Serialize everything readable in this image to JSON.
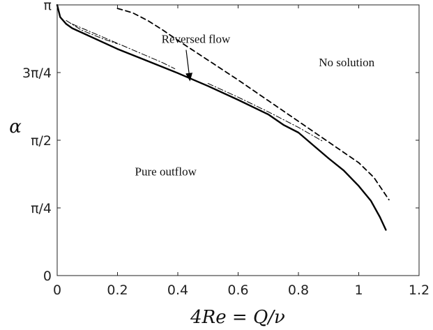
{
  "chart_data": {
    "type": "line",
    "xlabel": "4Re = Q/ν",
    "ylabel": "α",
    "xlim": [
      0,
      1.2
    ],
    "ylim": [
      0,
      3.14159
    ],
    "xticks": [
      0,
      0.2,
      0.4,
      0.6,
      0.8,
      1,
      1.2
    ],
    "xtick_labels": [
      "0",
      "0.2",
      "0.4",
      "0.6",
      "0.8",
      "1",
      "1.2"
    ],
    "yticks": [
      0,
      0.785398,
      1.570796,
      2.356194,
      3.14159
    ],
    "ytick_labels": [
      "0",
      "π/4",
      "π/2",
      "3π/4",
      "π"
    ],
    "grid": false,
    "legend": "none",
    "annotations": [
      {
        "text": "Reversed flow",
        "x": 0.46,
        "y": 2.7,
        "arrow_to": [
          0.44,
          2.27
        ]
      },
      {
        "text": "No solution",
        "x": 0.96,
        "y": 2.43
      },
      {
        "text": "Pure outflow",
        "x": 0.36,
        "y": 1.16
      }
    ],
    "series": [
      {
        "style": "solid",
        "x": [
          0,
          0.01,
          0.03,
          0.05,
          0.1,
          0.2,
          0.3,
          0.4,
          0.5,
          0.6,
          0.7,
          0.75,
          0.8,
          0.85,
          0.9,
          0.95,
          1.0,
          1.04,
          1.07,
          1.09
        ],
        "y": [
          3.14,
          3.0,
          2.92,
          2.87,
          2.79,
          2.63,
          2.49,
          2.35,
          2.2,
          2.04,
          1.87,
          1.75,
          1.66,
          1.51,
          1.36,
          1.22,
          1.04,
          0.87,
          0.68,
          0.53
        ]
      },
      {
        "style": "dashed",
        "x": [
          0.2,
          0.25,
          0.3,
          0.35,
          0.4,
          0.5,
          0.6,
          0.7,
          0.8,
          0.9,
          1.0,
          1.05,
          1.1
        ],
        "y": [
          3.1,
          3.05,
          2.96,
          2.85,
          2.73,
          2.5,
          2.27,
          2.03,
          1.79,
          1.55,
          1.31,
          1.14,
          0.88
        ]
      },
      {
        "style": "dashdot",
        "x": [
          0.03,
          0.08,
          0.15,
          0.2
        ],
        "y": [
          2.96,
          2.85,
          2.75,
          2.69
        ]
      },
      {
        "style": "dashdot",
        "x": [
          0.05,
          0.15,
          0.25,
          0.35,
          0.39
        ],
        "y": [
          2.92,
          2.77,
          2.62,
          2.47,
          2.4
        ]
      },
      {
        "style": "dashdot",
        "x": [
          0.5,
          0.6,
          0.7,
          0.8,
          0.88
        ],
        "y": [
          2.23,
          2.07,
          1.9,
          1.72,
          1.56
        ]
      }
    ]
  }
}
